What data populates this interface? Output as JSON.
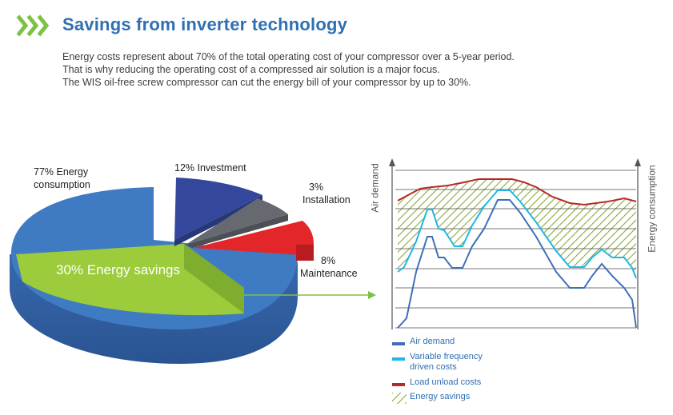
{
  "header": {
    "title": "Savings from inverter technology",
    "chevron_icon": "triple-chevron-right-icon",
    "accent_color": "#7dc242",
    "title_color": "#2f6fb3"
  },
  "intro": {
    "lines": [
      "Energy costs represent about 70% of the total operating cost of your compressor over a 5-year period.",
      "That is why reducing the operating cost of a compressed air solution is a major focus.",
      "The WIS oil-free screw compressor can cut the energy bill of your compressor by up to 30%."
    ]
  },
  "pie": {
    "labels": {
      "energy": [
        "77% Energy",
        "consumption"
      ],
      "investment": "12% Investment",
      "installation": [
        "3%",
        "Installation"
      ],
      "maintenance": [
        "8%",
        "Maintenance"
      ],
      "savings": "30% Energy savings"
    },
    "colors": {
      "energy": "#3f7bc3",
      "investment": "#35479c",
      "installation": "#666a70",
      "maintenance": "#e3262a",
      "savings": "#9ccb3b"
    }
  },
  "line_chart": {
    "y_left_label": "Air demand",
    "y_right_label": "Energy consumption",
    "colors": {
      "air_demand": "#3f6fb8",
      "variable_frequency": "#1fb8e6",
      "load_unload": "#b52a2a",
      "savings_hatch": "#8aaa3a"
    }
  },
  "legend": {
    "air_demand": "Air demand",
    "variable_frequency": [
      "Variable frequency",
      "driven costs"
    ],
    "load_unload": "Load unload costs",
    "energy_savings": "Energy savings"
  }
}
